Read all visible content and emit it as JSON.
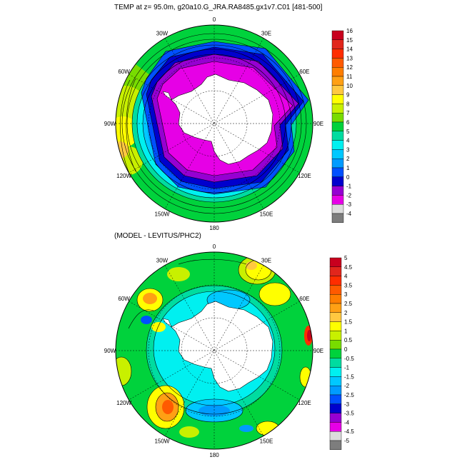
{
  "top_panel": {
    "title": "TEMP at z=  95.0m, g20a10.G_JRA.RA8485.gx1v7.C01 [481-500]",
    "lon_labels": [
      "0",
      "30E",
      "60E",
      "90E",
      "120E",
      "150E",
      "180",
      "150W",
      "120W",
      "90W",
      "60W",
      "30W"
    ],
    "colorbar": {
      "labels": [
        "16",
        "15",
        "14",
        "13",
        "12",
        "11",
        "10",
        "9",
        "8",
        "7",
        "6",
        "5",
        "4",
        "3",
        "2",
        "1",
        "0",
        "-1",
        "-2",
        "-3",
        "-4"
      ],
      "colors": [
        "#c8001e",
        "#e1261c",
        "#ff2d00",
        "#ff5a00",
        "#ff7e00",
        "#ffa014",
        "#ffc840",
        "#ffff00",
        "#c8f000",
        "#78dc00",
        "#00d23c",
        "#00dca0",
        "#00f0f0",
        "#00c8ff",
        "#009bff",
        "#0050ff",
        "#0000cd",
        "#9600d2",
        "#e600e6",
        "#dcdcdc",
        "#7d7d7d"
      ]
    }
  },
  "bottom_panel": {
    "title": "(MODEL - LEVITUS/PHC2)",
    "lon_labels": [
      "0",
      "30E",
      "60E",
      "90E",
      "120E",
      "150E",
      "180",
      "150W",
      "120W",
      "90W",
      "60W",
      "30W"
    ],
    "colorbar": {
      "labels": [
        "5",
        "4.5",
        "4",
        "3.5",
        "3",
        "2.5",
        "2",
        "1.5",
        "1",
        "0.5",
        "0",
        "-0.5",
        "-1",
        "-1.5",
        "-2",
        "-2.5",
        "-3",
        "-3.5",
        "-4",
        "-4.5",
        "-5"
      ],
      "colors": [
        "#c8001e",
        "#e1261c",
        "#ff2d00",
        "#ff5a00",
        "#ff7e00",
        "#ffa014",
        "#ffc840",
        "#ffff00",
        "#c8f000",
        "#78dc00",
        "#00d23c",
        "#00dca0",
        "#00f0f0",
        "#00c8ff",
        "#009bff",
        "#0050ff",
        "#0000cd",
        "#9600d2",
        "#e600e6",
        "#dcdcdc",
        "#7d7d7d"
      ]
    }
  }
}
